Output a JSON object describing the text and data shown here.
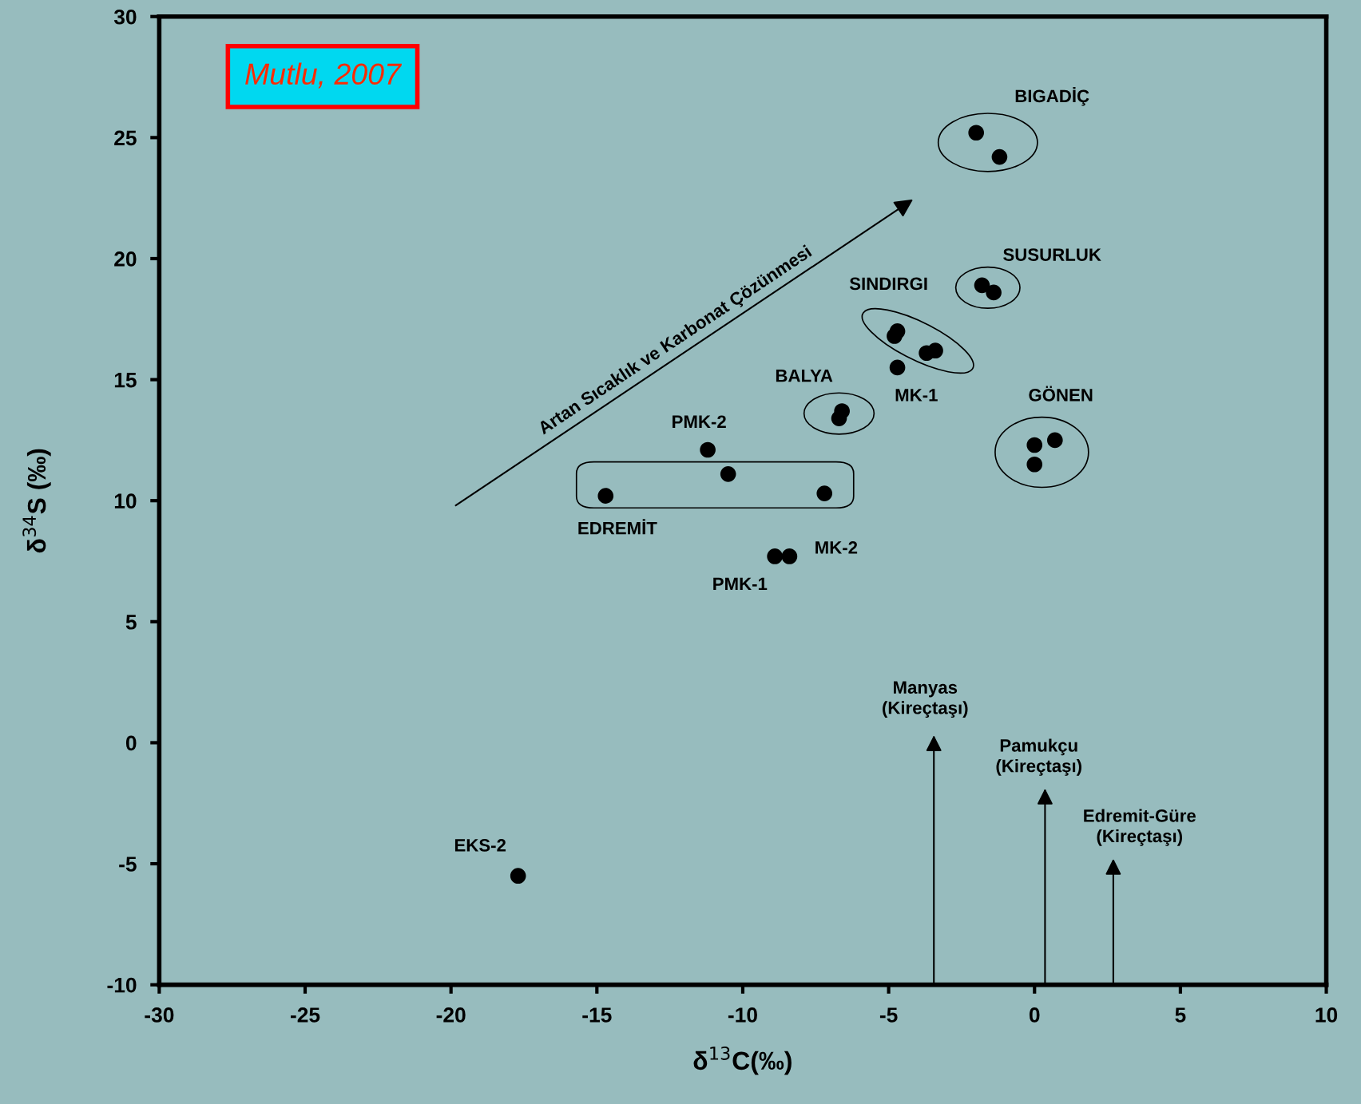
{
  "chart_data": {
    "type": "scatter",
    "xlabel": "δ$^{13}$C(‰)",
    "ylabel": "δ$^{34}$S (‰)",
    "xlim": [
      -30,
      10
    ],
    "xticks": [
      -30,
      -25,
      -20,
      -15,
      -10,
      -5,
      0,
      5,
      10
    ],
    "ylim": [
      -10,
      30
    ],
    "yticks": [
      -10,
      -5,
      0,
      5,
      10,
      15,
      20,
      25,
      30
    ],
    "grid": false,
    "marker": "circle",
    "series": [
      {
        "color": "#000000",
        "x": [
          -2.0,
          -1.2,
          -1.8,
          -1.4,
          -4.7,
          -4.8,
          -3.7,
          -3.4,
          -4.7,
          0.0,
          0.7,
          0.0,
          -6.6,
          -6.7,
          -11.2,
          -10.5,
          -14.7,
          -7.2,
          -8.9,
          -8.4,
          -17.7
        ],
        "values": [
          25.2,
          24.2,
          18.9,
          18.6,
          17.0,
          16.8,
          16.1,
          16.2,
          15.5,
          12.3,
          12.5,
          11.5,
          13.7,
          13.4,
          12.1,
          11.1,
          10.2,
          10.3,
          7.7,
          7.7,
          -5.5
        ]
      }
    ],
    "annotations": [
      "Mutlu, 2007",
      "Artan Sıcaklık ve Karbonat Çözünmesi",
      "BIGADİÇ",
      "SUSURLUK",
      "SINDIRGI",
      "MK-1",
      "GÖNEN",
      "BALYA",
      "PMK-2",
      "EDREMİT",
      "MK-2",
      "PMK-1",
      "EKS-2",
      "Manyas\n(Kireçtaşı)",
      "Pamukçu\n(Kireçtaşı)",
      "Edremit-Güre\n(Kireçtaşı)"
    ]
  }
}
